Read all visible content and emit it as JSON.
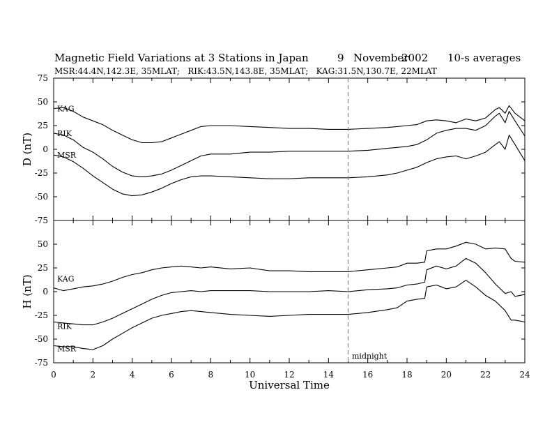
{
  "header": {
    "title": "Magnetic Field Variations at 3 Stations in Japan",
    "date_day": "9",
    "date_month": "November",
    "date_year": "2002",
    "averaging": "10-s averages",
    "subtitle": "MSR:44.4N,142.3E, 35MLAT;   RIK:43.5N,143.8E, 35MLAT;   KAG:31.5N,130.7E, 22MLAT"
  },
  "annotation": {
    "midnight": "midnight",
    "midnight_ut": 15
  },
  "xaxis": {
    "label": "Universal Time",
    "range": [
      0,
      24
    ],
    "ticks": [
      "0",
      "2",
      "4",
      "6",
      "8",
      "10",
      "12",
      "14",
      "16",
      "18",
      "20",
      "22",
      "24"
    ]
  },
  "chart_data": [
    {
      "type": "line",
      "panel": "D",
      "ylabel": "D (nT)",
      "ylim": [
        -75,
        75
      ],
      "yticks": [
        "75",
        "50",
        "25",
        "0",
        "-25",
        "-50",
        "-75"
      ],
      "x": [
        0,
        0.5,
        1,
        1.5,
        2,
        2.5,
        3,
        3.5,
        4,
        4.5,
        5,
        5.5,
        6,
        6.5,
        7,
        7.5,
        8,
        9,
        10,
        11,
        12,
        13,
        14,
        15,
        16,
        17,
        17.5,
        18,
        18.5,
        19,
        19.5,
        20,
        20.5,
        21,
        21.5,
        22,
        22.5,
        22.7,
        23,
        23.2,
        23.5,
        24
      ],
      "series": [
        {
          "name": "KAG",
          "values": [
            43,
            44,
            40,
            34,
            30,
            26,
            20,
            15,
            10,
            7,
            7,
            8,
            12,
            16,
            20,
            24,
            25,
            25,
            24,
            23,
            22,
            22,
            21,
            21,
            22,
            23,
            24,
            25,
            26,
            30,
            31,
            30,
            28,
            32,
            30,
            33,
            42,
            44,
            38,
            46,
            38,
            30
          ]
        },
        {
          "name": "RIK",
          "values": [
            17,
            15,
            10,
            2,
            -3,
            -10,
            -18,
            -24,
            -28,
            -29,
            -28,
            -26,
            -22,
            -17,
            -12,
            -7,
            -5,
            -5,
            -3,
            -3,
            -2,
            -2,
            -2,
            -2,
            -1,
            1,
            2,
            3,
            5,
            10,
            17,
            20,
            22,
            22,
            20,
            25,
            35,
            38,
            28,
            40,
            30,
            14
          ]
        },
        {
          "name": "MSR",
          "values": [
            -6,
            -8,
            -13,
            -20,
            -28,
            -35,
            -42,
            -47,
            -49,
            -48,
            -45,
            -41,
            -36,
            -32,
            -29,
            -28,
            -28,
            -29,
            -30,
            -31,
            -31,
            -30,
            -30,
            -30,
            -29,
            -27,
            -25,
            -22,
            -19,
            -14,
            -10,
            -8,
            -7,
            -10,
            -7,
            -3,
            5,
            8,
            0,
            15,
            5,
            -12
          ]
        }
      ]
    },
    {
      "type": "line",
      "panel": "H",
      "ylabel": "H (nT)",
      "ylim": [
        -75,
        75
      ],
      "yticks": [
        "50",
        "25",
        "0",
        "-25",
        "-50",
        "-75"
      ],
      "x": [
        0,
        0.5,
        1,
        1.5,
        2,
        2.5,
        3,
        3.5,
        4,
        4.5,
        5,
        5.5,
        6,
        6.5,
        7,
        7.5,
        8,
        9,
        10,
        11,
        12,
        13,
        14,
        15,
        16,
        17,
        17.5,
        18,
        18.5,
        18.9,
        19,
        19.5,
        20,
        20.5,
        21,
        21.5,
        22,
        22.5,
        23,
        23.3,
        23.5,
        24
      ],
      "series": [
        {
          "name": "KAG",
          "values": [
            4,
            1,
            3,
            5,
            6,
            8,
            11,
            15,
            18,
            20,
            23,
            25,
            26,
            27,
            26,
            25,
            26,
            24,
            25,
            22,
            22,
            21,
            21,
            21,
            23,
            25,
            26,
            30,
            30,
            31,
            43,
            45,
            45,
            48,
            52,
            50,
            45,
            46,
            45,
            35,
            32,
            31
          ]
        },
        {
          "name": "RIK",
          "values": [
            -32,
            -33,
            -34,
            -35,
            -35,
            -32,
            -28,
            -23,
            -18,
            -13,
            -8,
            -4,
            -1,
            0,
            1,
            0,
            1,
            1,
            1,
            0,
            0,
            0,
            1,
            0,
            2,
            3,
            4,
            7,
            8,
            10,
            23,
            27,
            24,
            27,
            35,
            30,
            20,
            8,
            -2,
            0,
            -5,
            -3
          ]
        },
        {
          "name": "MSR",
          "values": [
            -57,
            -58,
            -58,
            -60,
            -61,
            -57,
            -50,
            -44,
            -38,
            -33,
            -28,
            -25,
            -23,
            -21,
            -20,
            -21,
            -22,
            -24,
            -25,
            -26,
            -25,
            -24,
            -24,
            -24,
            -22,
            -19,
            -17,
            -10,
            -8,
            -7,
            5,
            7,
            3,
            5,
            12,
            5,
            -4,
            -10,
            -20,
            -30,
            -30,
            -32
          ]
        }
      ]
    }
  ]
}
